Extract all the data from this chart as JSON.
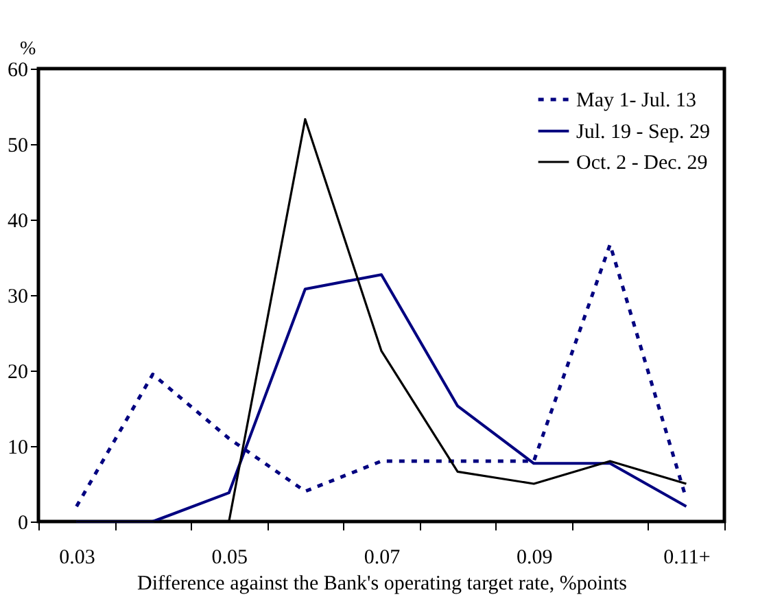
{
  "chart_data": {
    "type": "line",
    "xlabel": "Difference against the Bank's operating target rate, %points",
    "ylabel": "%",
    "categories": [
      "0.03",
      null,
      "0.05",
      null,
      "0.07",
      null,
      "0.09",
      null,
      "0.11+"
    ],
    "series": [
      {
        "name": "May 1- Jul. 13",
        "color": "#000080",
        "line_style": "dotted",
        "values": [
          2,
          19.5,
          11,
          4,
          8,
          8,
          8,
          36.7,
          3
        ]
      },
      {
        "name": "Jul. 19 - Sep. 29",
        "color": "#000080",
        "line_style": "solid",
        "values": [
          0,
          0,
          3.8,
          30.8,
          32.7,
          15.3,
          7.7,
          7.7,
          2
        ]
      },
      {
        "name": "Oct. 2 - Dec. 29",
        "color": "#000000",
        "line_style": "solid",
        "values": [
          0,
          0,
          0,
          53.3,
          22.6,
          6.6,
          5,
          8,
          5
        ]
      }
    ],
    "ylim": [
      0,
      60
    ],
    "yticks": [
      0,
      10,
      20,
      30,
      40,
      50,
      60
    ],
    "grid": false,
    "legend": "top right",
    "marker": "none"
  }
}
